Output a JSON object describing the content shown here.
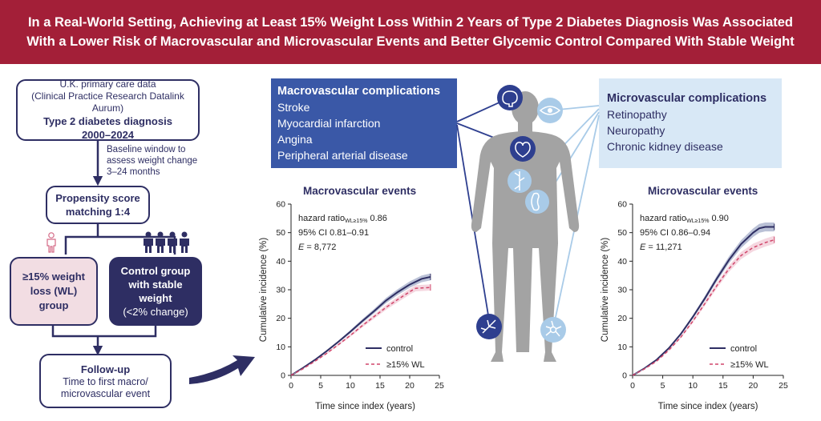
{
  "banner": {
    "line1": "In a Real-World Setting, Achieving at Least 15% Weight Loss Within 2 Years of Type 2 Diabetes Diagnosis Was Associated",
    "line2": "With a Lower Risk of Macrovascular and Microvascular Events and Better Glycemic Control Compared With Stable Weight"
  },
  "flow": {
    "source_line1": "U.K. primary care data",
    "source_line2": "(Clinical Practice Research Datalink Aurum)",
    "diagnosis_line1": "Type 2 diabetes diagnosis",
    "diagnosis_line2": "2000–2024",
    "baseline_line1": "Baseline window to",
    "baseline_line2": "assess weight change",
    "baseline_line3": "3–24 months",
    "matching_line1": "Propensity score",
    "matching_line2": "matching 1:4",
    "wl_line1": "≥15% weight",
    "wl_line2": "loss (WL)",
    "wl_line3": "group",
    "control_line1": "Control group",
    "control_line2": "with stable",
    "control_line3": "weight",
    "control_line4": "(<2% change)",
    "followup_title": "Follow-up",
    "followup_line1": "Time to first macro/",
    "followup_line2": "microvascular event"
  },
  "macro_box": {
    "title": "Macrovascular complications",
    "items": [
      "Stroke",
      "Myocardial infarction",
      "Angina",
      "Peripheral arterial disease"
    ]
  },
  "micro_box": {
    "title": "Microvascular complications",
    "items": [
      "Retinopathy",
      "Neuropathy",
      "Chronic kidney disease"
    ]
  },
  "icons": [
    "brain-icon",
    "eye-icon",
    "heart-icon",
    "nerve-icon",
    "kidney-icon",
    "artery-icon",
    "neuron-icon",
    "person-icon",
    "group-icon"
  ],
  "colors": {
    "banner": "#a31f38",
    "navy": "#2e2e63",
    "macro_blue": "#3a58a7",
    "micro_light": "#d8e8f6",
    "wl_pink": "#f2dde3",
    "wl_line": "#d0456a",
    "figure_gray": "#a3a3a3"
  },
  "chart_data": [
    {
      "type": "line",
      "title": "Macrovascular events",
      "xlabel": "Time since index (years)",
      "ylabel": "Cumulative incidence (%)",
      "xlim": [
        0,
        25
      ],
      "ylim": [
        0,
        60
      ],
      "xticks": [
        "0",
        "5",
        "10",
        "15",
        "20",
        "25"
      ],
      "yticks": [
        "0",
        "10",
        "20",
        "30",
        "40",
        "50",
        "60"
      ],
      "hr_label": "hazard ratio",
      "hr_sub": "WL≥15%",
      "hr_value": " 0.86",
      "ci": "95% CI 0.81–0.91",
      "e_label": "E",
      "e_value": " = 8,772",
      "legend_position": "bottom-right",
      "series": [
        {
          "name": "control",
          "x": [
            0,
            2,
            4,
            6,
            8,
            10,
            12,
            14,
            16,
            18,
            20,
            22,
            23.5
          ],
          "values": [
            0,
            2.6,
            5.4,
            8.5,
            11.8,
            15.3,
            19.0,
            22.5,
            26.2,
            29.2,
            31.8,
            33.8,
            34.5
          ]
        },
        {
          "name": "≥15% WL",
          "x": [
            0,
            2,
            4,
            6,
            8,
            10,
            12,
            14,
            16,
            18,
            20,
            21,
            23.5
          ],
          "values": [
            0,
            2.3,
            4.9,
            7.7,
            10.8,
            14.0,
            17.4,
            20.6,
            23.8,
            26.6,
            29.3,
            30.5,
            30.8
          ]
        }
      ]
    },
    {
      "type": "line",
      "title": "Microvascular events",
      "xlabel": "Time since index (years)",
      "ylabel": "Cumulative incidence (%)",
      "xlim": [
        0,
        25
      ],
      "ylim": [
        0,
        60
      ],
      "xticks": [
        "0",
        "5",
        "10",
        "15",
        "20",
        "25"
      ],
      "yticks": [
        "0",
        "10",
        "20",
        "30",
        "40",
        "50",
        "60"
      ],
      "hr_label": "hazard ratio",
      "hr_sub": "WL≥15%",
      "hr_value": " 0.90",
      "ci": "95% CI 0.86–0.94",
      "e_label": "E",
      "e_value": " = 11,271",
      "legend_position": "bottom-right",
      "series": [
        {
          "name": "control",
          "x": [
            0,
            2,
            4,
            6,
            8,
            10,
            12,
            14,
            16,
            18,
            20,
            21,
            22,
            23.5
          ],
          "values": [
            0,
            2.5,
            5.5,
            9.5,
            14.5,
            20.5,
            27.0,
            34.0,
            40.5,
            46.0,
            50.0,
            51.5,
            52.0,
            52.0
          ]
        },
        {
          "name": "≥15% WL",
          "x": [
            0,
            2,
            4,
            6,
            8,
            10,
            12,
            14,
            16,
            18,
            20,
            22,
            23.5
          ],
          "values": [
            0,
            2.3,
            5.0,
            8.8,
            13.4,
            19.0,
            25.2,
            31.5,
            37.4,
            42.0,
            44.8,
            46.5,
            47.5
          ]
        }
      ]
    }
  ]
}
